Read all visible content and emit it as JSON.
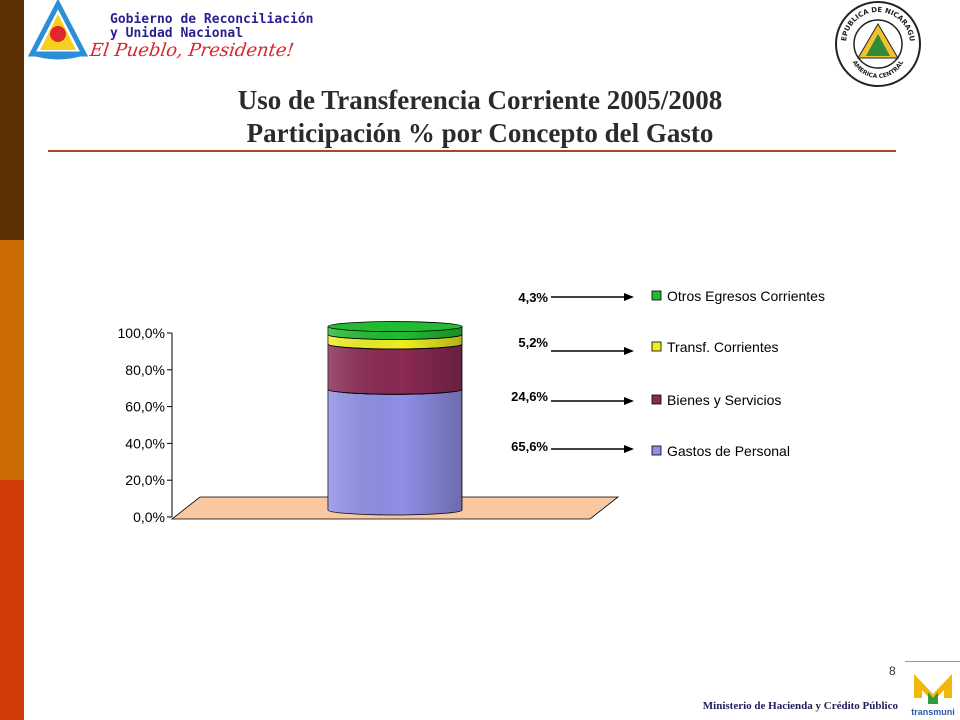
{
  "header": {
    "logo_line1": "Gobierno de Reconciliación",
    "logo_line2": "y Unidad Nacional",
    "logo_slogan": "El Pueblo, Presidente!",
    "seal_text_top": "REPUBLICA DE NICARAGUA",
    "seal_text_bottom": "AMERICA CENTRAL"
  },
  "title": {
    "line1": "Uso de Transferencia Corriente 2005/2008",
    "line2": "Participación % por Concepto del Gasto"
  },
  "chart_data": {
    "type": "bar",
    "stacked": true,
    "three_d": true,
    "categories": [
      ""
    ],
    "series": [
      {
        "name": "Gastos de Personal",
        "values": [
          65.6
        ],
        "label": "65,6%",
        "color": "#8f8fe6"
      },
      {
        "name": "Bienes y Servicios",
        "values": [
          24.6
        ],
        "label": "24,6%",
        "color": "#8a2a55"
      },
      {
        "name": "Transf. Corrientes",
        "values": [
          5.2
        ],
        "label": "5,2%",
        "color": "#eeee22"
      },
      {
        "name": "Otros Egresos Corrientes",
        "values": [
          4.3
        ],
        "label": "4,3%",
        "color": "#22bb33"
      }
    ],
    "y_ticks": [
      "0,0%",
      "20,0%",
      "40,0%",
      "60,0%",
      "80,0%",
      "100,0%"
    ],
    "ylim": [
      0,
      100
    ],
    "legend_position": "right",
    "floor_color": "#f9c8a0",
    "grid": false
  },
  "footer": {
    "page_number": "8",
    "ministry": "Ministerio de Hacienda y Crédito Público",
    "transmuni_label": "transmuni"
  }
}
